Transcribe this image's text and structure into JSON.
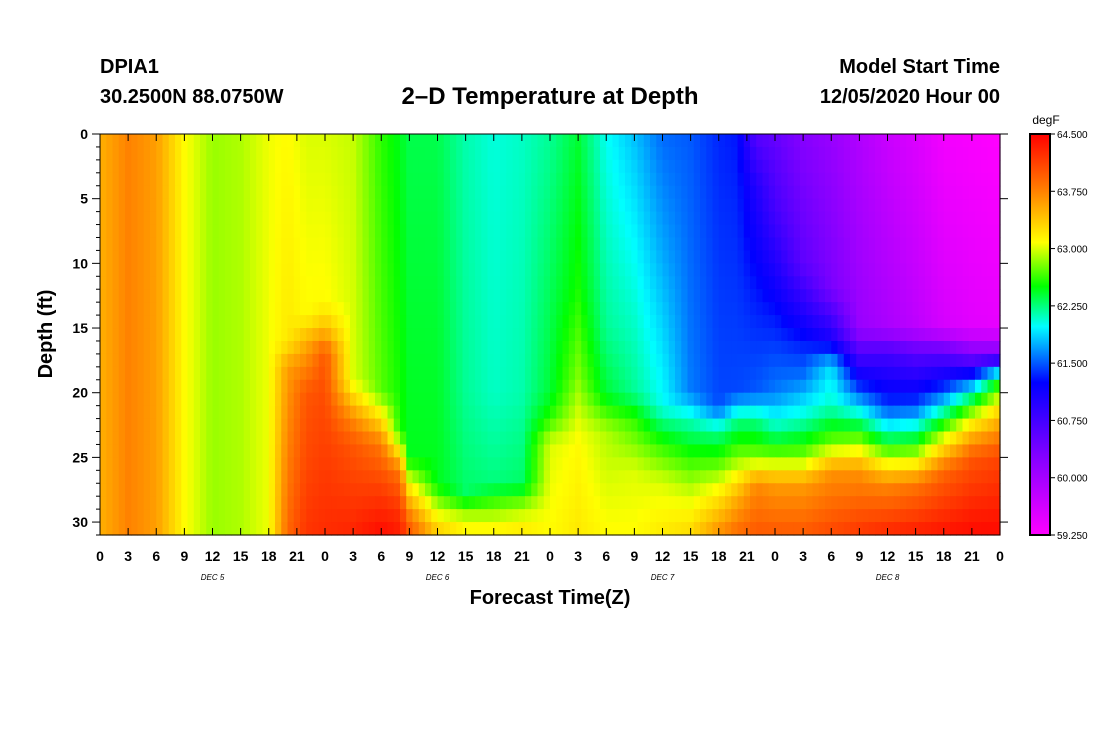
{
  "header": {
    "station": "DPIA1",
    "coords": "30.2500N 88.0750W",
    "start_label": "Model Start Time",
    "start_value": "12/05/2020 Hour 00"
  },
  "chart_data": {
    "type": "heatmap",
    "title": "2–D Temperature at Depth",
    "xlabel": "Forecast Time(Z)",
    "ylabel": "Depth (ft)",
    "x_range_hours": [
      0,
      96
    ],
    "x_tick_step_hours": 3,
    "x_tick_labels": [
      "0",
      "3",
      "6",
      "9",
      "12",
      "15",
      "18",
      "21",
      "0",
      "3",
      "6",
      "9",
      "12",
      "15",
      "18",
      "21",
      "0",
      "3",
      "6",
      "9",
      "12",
      "15",
      "18",
      "21",
      "0",
      "3",
      "6",
      "9",
      "12",
      "15",
      "18",
      "21",
      "0"
    ],
    "day_labels": [
      {
        "label": "DEC 5",
        "hour": 12
      },
      {
        "label": "DEC 6",
        "hour": 36
      },
      {
        "label": "DEC 7",
        "hour": 60
      },
      {
        "label": "DEC 8",
        "hour": 84
      }
    ],
    "ylim": [
      0,
      31
    ],
    "y_ticks": [
      0,
      5,
      10,
      15,
      20,
      25,
      30
    ],
    "y_tick_labels": [
      "0",
      "5",
      "10",
      "15",
      "20",
      "25",
      "30"
    ],
    "colorbar": {
      "unit": "degF",
      "min": 59.25,
      "max": 64.5,
      "ticks": [
        64.5,
        63.75,
        63.0,
        62.25,
        61.5,
        60.75,
        60.0,
        59.25
      ],
      "tick_labels": [
        "64.500",
        "63.750",
        "63.000",
        "62.250",
        "61.500",
        "60.750",
        "60.000",
        "59.250"
      ]
    },
    "profiles": [
      {
        "hour": 0,
        "depth": [
          0,
          31
        ],
        "temp": [
          63.5,
          63.5
        ]
      },
      {
        "hour": 3,
        "depth": [
          0,
          31
        ],
        "temp": [
          63.75,
          63.75
        ]
      },
      {
        "hour": 6,
        "depth": [
          0,
          31
        ],
        "temp": [
          63.6,
          63.6
        ]
      },
      {
        "hour": 9,
        "depth": [
          0,
          31
        ],
        "temp": [
          63.1,
          63.1
        ]
      },
      {
        "hour": 12,
        "depth": [
          0,
          31
        ],
        "temp": [
          62.85,
          62.85
        ]
      },
      {
        "hour": 15,
        "depth": [
          0,
          31
        ],
        "temp": [
          62.9,
          62.9
        ]
      },
      {
        "hour": 18,
        "depth": [
          0,
          31
        ],
        "temp": [
          63.05,
          63.05
        ]
      },
      {
        "hour": 20,
        "depth": [
          0,
          16,
          18,
          31
        ],
        "temp": [
          63.1,
          63.2,
          63.6,
          63.9
        ]
      },
      {
        "hour": 22,
        "depth": [
          0,
          14,
          16,
          20,
          26,
          31
        ],
        "temp": [
          63.0,
          63.1,
          63.5,
          64.0,
          64.1,
          64.2
        ]
      },
      {
        "hour": 24,
        "depth": [
          0,
          13,
          15,
          17,
          22,
          31
        ],
        "temp": [
          63.0,
          63.1,
          63.45,
          64.0,
          64.1,
          64.25
        ]
      },
      {
        "hour": 27,
        "depth": [
          0,
          19,
          22,
          24,
          31
        ],
        "temp": [
          62.95,
          63.0,
          63.7,
          64.0,
          64.3
        ]
      },
      {
        "hour": 30,
        "depth": [
          0,
          20,
          24,
          27,
          31
        ],
        "temp": [
          62.6,
          62.7,
          63.8,
          64.1,
          64.45
        ]
      },
      {
        "hour": 32,
        "depth": [
          0,
          23,
          26,
          29,
          31
        ],
        "temp": [
          62.45,
          62.55,
          63.8,
          64.2,
          64.35
        ]
      },
      {
        "hour": 33,
        "depth": [
          0,
          25,
          28,
          30,
          31
        ],
        "temp": [
          62.35,
          62.45,
          63.4,
          63.9,
          64.0
        ]
      },
      {
        "hour": 36,
        "depth": [
          0,
          27,
          29,
          30.5,
          31
        ],
        "temp": [
          62.35,
          62.45,
          62.95,
          63.3,
          63.35
        ]
      },
      {
        "hour": 39,
        "depth": [
          0,
          20,
          28,
          29,
          31
        ],
        "temp": [
          62.15,
          62.2,
          62.3,
          62.8,
          63.2
        ]
      },
      {
        "hour": 42,
        "depth": [
          0,
          20,
          27,
          29,
          31
        ],
        "temp": [
          62.05,
          62.1,
          62.25,
          62.8,
          63.2
        ]
      },
      {
        "hour": 45,
        "depth": [
          0,
          20,
          27,
          29,
          31
        ],
        "temp": [
          62.1,
          62.15,
          62.3,
          62.9,
          63.25
        ]
      },
      {
        "hour": 48,
        "depth": [
          0,
          20,
          22,
          24,
          31
        ],
        "temp": [
          62.2,
          62.4,
          62.6,
          63.0,
          63.1
        ]
      },
      {
        "hour": 51,
        "depth": [
          0,
          12,
          19,
          22,
          24,
          31
        ],
        "temp": [
          62.4,
          62.55,
          62.8,
          63.0,
          63.1,
          63.2
        ]
      },
      {
        "hour": 54,
        "depth": [
          0,
          15,
          20,
          23,
          31
        ],
        "temp": [
          62.0,
          62.2,
          62.4,
          62.9,
          63.1
        ]
      },
      {
        "hour": 57,
        "depth": [
          0,
          10,
          20,
          22,
          26,
          31
        ],
        "temp": [
          61.8,
          62.0,
          62.2,
          62.6,
          63.0,
          63.1
        ]
      },
      {
        "hour": 60,
        "depth": [
          0,
          10,
          21,
          24,
          27,
          31
        ],
        "temp": [
          61.55,
          61.75,
          62.0,
          62.6,
          63.0,
          63.2
        ]
      },
      {
        "hour": 63,
        "depth": [
          0,
          20,
          22,
          25,
          28,
          31
        ],
        "temp": [
          61.5,
          61.6,
          62.1,
          62.6,
          63.0,
          63.3
        ]
      },
      {
        "hour": 66,
        "depth": [
          0,
          21,
          23,
          26,
          28,
          31
        ],
        "temp": [
          61.35,
          61.45,
          62.2,
          62.8,
          63.2,
          63.7
        ]
      },
      {
        "hour": 68,
        "depth": [
          0,
          5,
          20,
          22,
          25,
          28,
          31
        ],
        "temp": [
          61.3,
          61.35,
          61.45,
          62.2,
          62.8,
          63.5,
          63.9
        ]
      },
      {
        "hour": 70,
        "depth": [
          0,
          4,
          12,
          20,
          22,
          25,
          27,
          31
        ],
        "temp": [
          60.6,
          61.0,
          61.3,
          61.5,
          62.2,
          62.8,
          63.7,
          64.0
        ]
      },
      {
        "hour": 72,
        "depth": [
          0,
          6,
          14,
          20,
          23,
          25,
          27,
          31
        ],
        "temp": [
          60.5,
          60.75,
          61.3,
          61.6,
          62.2,
          62.8,
          63.6,
          64.0
        ]
      },
      {
        "hour": 75,
        "depth": [
          0,
          10,
          16,
          19,
          22,
          25,
          27,
          31
        ],
        "temp": [
          60.25,
          60.55,
          61.3,
          61.6,
          62.1,
          62.8,
          63.6,
          64.0
        ]
      },
      {
        "hour": 78,
        "depth": [
          0,
          12,
          16,
          18,
          21,
          24,
          26,
          31
        ],
        "temp": [
          60.1,
          60.35,
          61.1,
          61.9,
          62.1,
          62.8,
          63.65,
          64.1
        ]
      },
      {
        "hour": 81,
        "depth": [
          0,
          15,
          17,
          20,
          22,
          24,
          26,
          31
        ],
        "temp": [
          59.9,
          60.1,
          60.7,
          61.5,
          62.2,
          62.9,
          63.65,
          64.2
        ]
      },
      {
        "hour": 84,
        "depth": [
          0,
          15,
          17,
          21,
          23,
          25,
          27,
          31
        ],
        "temp": [
          59.7,
          59.95,
          60.75,
          61.4,
          62.1,
          62.9,
          63.7,
          64.3
        ]
      },
      {
        "hour": 87,
        "depth": [
          0,
          15,
          17,
          21,
          23,
          25,
          27,
          31
        ],
        "temp": [
          59.55,
          59.8,
          60.6,
          61.45,
          62.2,
          62.95,
          63.8,
          64.35
        ]
      },
      {
        "hour": 90,
        "depth": [
          0,
          15,
          17,
          20,
          22,
          24,
          26,
          31
        ],
        "temp": [
          59.35,
          59.6,
          60.6,
          61.5,
          62.4,
          63.2,
          63.9,
          64.4
        ]
      },
      {
        "hour": 93,
        "depth": [
          0,
          15,
          17,
          19,
          21,
          23,
          25,
          31
        ],
        "temp": [
          59.3,
          59.5,
          60.3,
          61.5,
          62.6,
          63.4,
          64.0,
          64.45
        ]
      },
      {
        "hour": 96,
        "depth": [
          0,
          15,
          17,
          19,
          21,
          23,
          25,
          31
        ],
        "temp": [
          59.25,
          59.45,
          60.3,
          62.5,
          63.2,
          63.7,
          64.1,
          64.45
        ]
      }
    ]
  }
}
